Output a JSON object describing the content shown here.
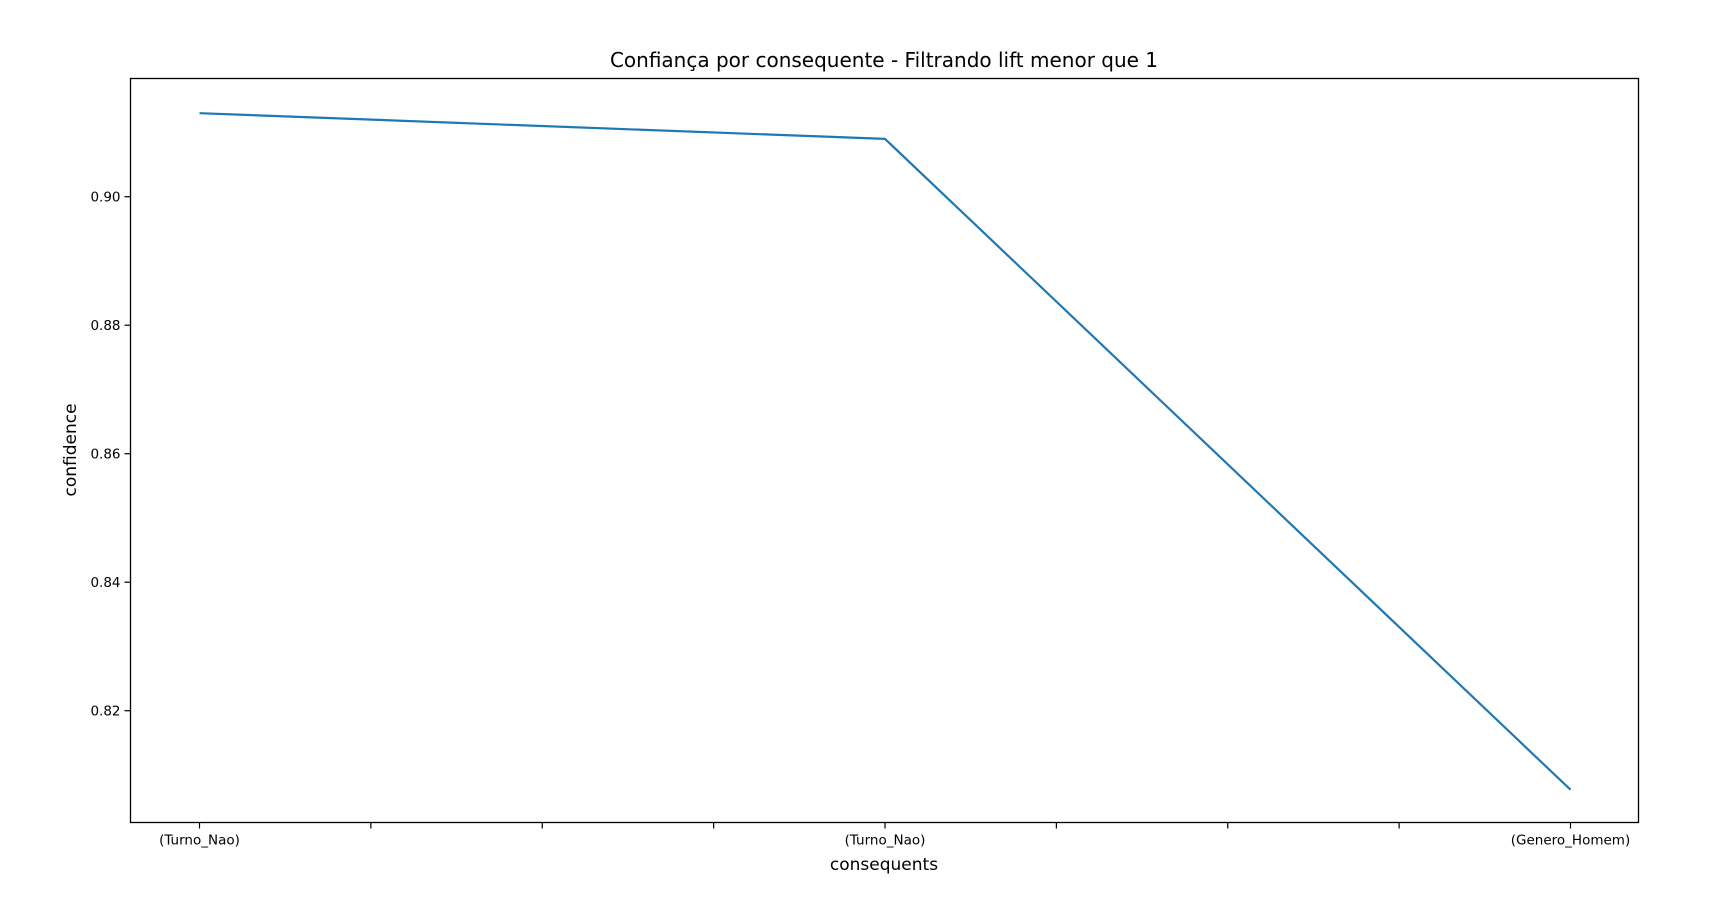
{
  "chart_data": {
    "type": "line",
    "title": "Confiança por consequente - Filtrando lift menor que 1",
    "xlabel": "consequents",
    "ylabel": "confidence",
    "categories": [
      "(Turno_Nao)",
      "(Turno_Nao)",
      "(Genero_Homem)"
    ],
    "minor_x_ticks_between": 3,
    "series": [
      {
        "values": [
          0.913,
          0.909,
          0.8077
        ]
      }
    ],
    "ylim": [
      0.8026,
      0.9184
    ],
    "yticks": [
      0.82,
      0.84,
      0.86,
      0.88,
      0.9
    ],
    "ytick_labels": [
      "0.82",
      "0.84",
      "0.86",
      "0.88",
      "0.90"
    ],
    "grid": false,
    "legend": "none",
    "line_color": "#1f77b4"
  }
}
